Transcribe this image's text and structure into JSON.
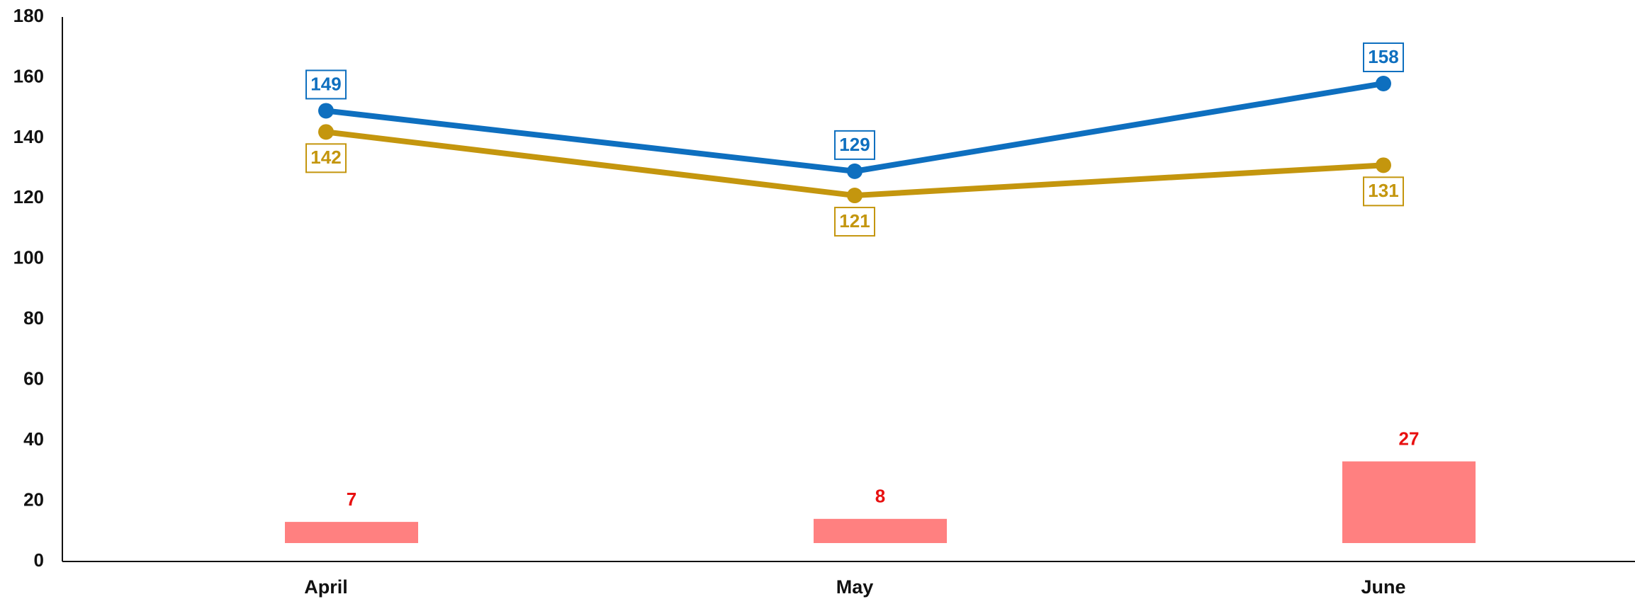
{
  "chart_data": {
    "type": "line",
    "categories": [
      "April",
      "May",
      "June"
    ],
    "ylim": [
      0,
      180
    ],
    "y_ticks": [
      0,
      20,
      40,
      60,
      80,
      100,
      120,
      140,
      160,
      180
    ],
    "grid": false,
    "series": [
      {
        "values": [
          149,
          129,
          158
        ],
        "color": "#0E6FBF",
        "kind": "line"
      },
      {
        "values": [
          142,
          121,
          131
        ],
        "color": "#C4960E",
        "kind": "line"
      }
    ],
    "bars": {
      "values": [
        7,
        8,
        27
      ],
      "color": "#FF8080",
      "label_color": "#E81010",
      "kind": "floating-bar"
    }
  }
}
